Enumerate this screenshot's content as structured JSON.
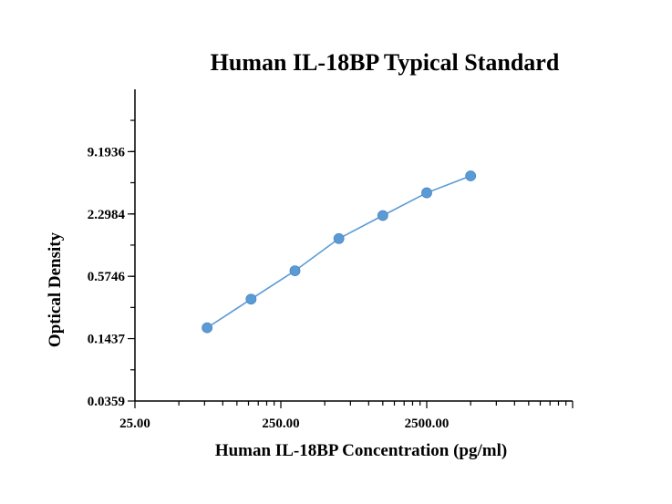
{
  "chart_data": {
    "type": "line",
    "title": "Human IL-18BP Typical Standard",
    "xlabel": "Human IL-18BP Concentration (pg/ml)",
    "ylabel": "Optical Density",
    "x_scale": "log",
    "y_scale": "log",
    "xlim": [
      25,
      25000
    ],
    "ylim": [
      0.0359,
      36.77
    ],
    "x_ticks": [
      "25.00",
      "250.00",
      "2500.00"
    ],
    "y_ticks": [
      "0.0359",
      "0.1437",
      "0.5746",
      "2.2984",
      "9.1936"
    ],
    "grid": false,
    "series": [
      {
        "color": "#5b9bd5",
        "x": [
          78.1,
          156.3,
          312.5,
          625,
          1250,
          2500,
          5000
        ],
        "y": [
          0.183,
          0.346,
          0.65,
          1.33,
          2.22,
          3.68,
          5.36
        ]
      }
    ]
  }
}
